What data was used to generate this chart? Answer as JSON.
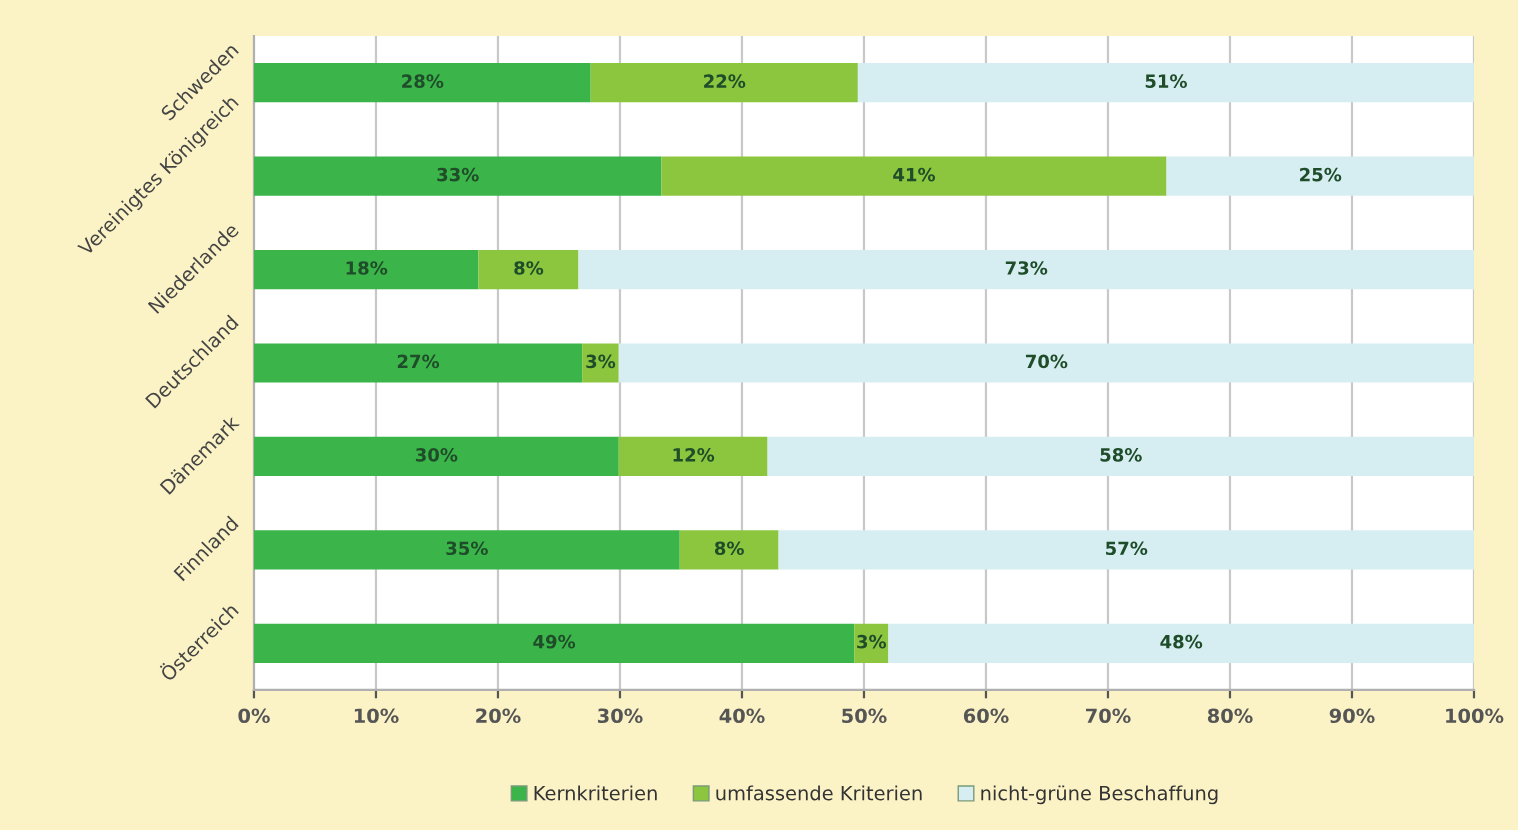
{
  "chart_data": {
    "type": "bar",
    "orientation": "horizontal",
    "stacked": true,
    "categories": [
      "Schweden",
      "Vereinigtes Königreich",
      "Niederlande",
      "Deutschland",
      "Dänemark",
      "Finnland",
      "Österreich"
    ],
    "series": [
      {
        "name": "Kernkriterien",
        "color": "#3bb54a",
        "values": [
          27.6,
          33.4,
          18.4,
          26.9,
          29.9,
          34.9,
          49.2
        ],
        "value_labels": [
          "28%",
          "33%",
          "18%",
          "27%",
          "30%",
          "35%",
          "49%"
        ]
      },
      {
        "name": "umfassende Kriterien",
        "color": "#8cc63f",
        "values": [
          21.9,
          41.4,
          8.2,
          3.0,
          12.2,
          8.1,
          2.8
        ],
        "value_labels": [
          "22%",
          "41%",
          "8%",
          "3%",
          "12%",
          "8%",
          "3%"
        ]
      },
      {
        "name": "nicht-grüne Beschaffung",
        "color": "#d6eef2",
        "values": [
          50.5,
          25.2,
          73.4,
          70.1,
          57.9,
          57.0,
          48.0
        ],
        "value_labels": [
          "51%",
          "25%",
          "73%",
          "70%",
          "58%",
          "57%",
          "48%"
        ]
      }
    ],
    "xlim": [
      0,
      100
    ],
    "xticks": [
      {
        "value": 0,
        "label": "0%"
      },
      {
        "value": 10,
        "label": "10%"
      },
      {
        "value": 20,
        "label": "20%"
      },
      {
        "value": 30,
        "label": "30%"
      },
      {
        "value": 40,
        "label": "40%"
      },
      {
        "value": 50,
        "label": "50%"
      },
      {
        "value": 60,
        "label": "60%"
      },
      {
        "value": 70,
        "label": "70%"
      },
      {
        "value": 80,
        "label": "80%"
      },
      {
        "value": 90,
        "label": "90%"
      },
      {
        "value": 100,
        "label": "100%"
      }
    ],
    "grid": "x",
    "legend": "bottom"
  }
}
